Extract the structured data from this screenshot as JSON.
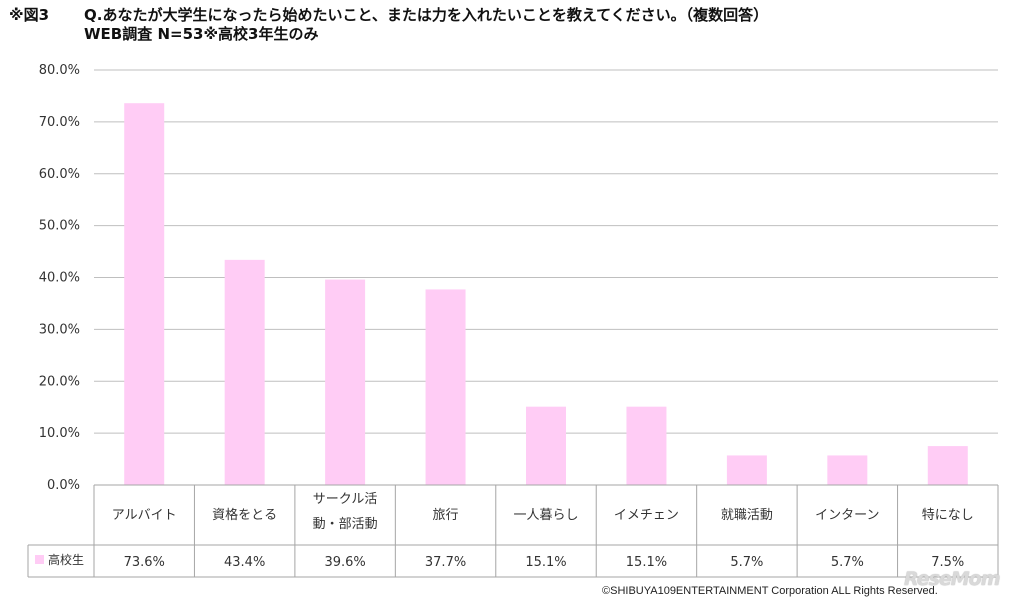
{
  "header": {
    "figure_label": "※図3",
    "question": "Q.あなたが大学生になったら始めたいこと、または力を入れたいことを教えてください。（複数回答）",
    "subtitle": "WEB調査 N=53※高校3年生のみ"
  },
  "chart_data": {
    "type": "bar",
    "categories": [
      "アルバイト",
      "資格をとる",
      "サークル活動・部活動",
      "旅行",
      "一人暮らし",
      "イメチェン",
      "就職活動",
      "インターン",
      "特になし"
    ],
    "category_lines": [
      [
        "アルバイト"
      ],
      [
        "資格をとる"
      ],
      [
        "サークル活",
        "動・部活動"
      ],
      [
        "旅行"
      ],
      [
        "一人暮らし"
      ],
      [
        "イメチェン"
      ],
      [
        "就職活動"
      ],
      [
        "インターン"
      ],
      [
        "特になし"
      ]
    ],
    "series": [
      {
        "name": "高校生",
        "values": [
          73.6,
          43.4,
          39.6,
          37.7,
          15.1,
          15.1,
          5.7,
          5.7,
          7.5
        ],
        "color": "#ffccf5"
      }
    ],
    "table_values": [
      "73.6%",
      "43.4%",
      "39.6%",
      "37.7%",
      "15.1%",
      "15.1%",
      "5.7%",
      "5.7%",
      "7.5%"
    ],
    "yticks": [
      "0.0%",
      "10.0%",
      "20.0%",
      "30.0%",
      "40.0%",
      "50.0%",
      "60.0%",
      "70.0%",
      "80.0%"
    ],
    "ylim": [
      0,
      80
    ],
    "grid": true,
    "legend_placement": "data-table-left"
  },
  "footer": {
    "credit": "©SHIBUYA109ENTERTAINMENT Corporation   ALL Rights Reserved.",
    "logo": "ReseMom"
  }
}
